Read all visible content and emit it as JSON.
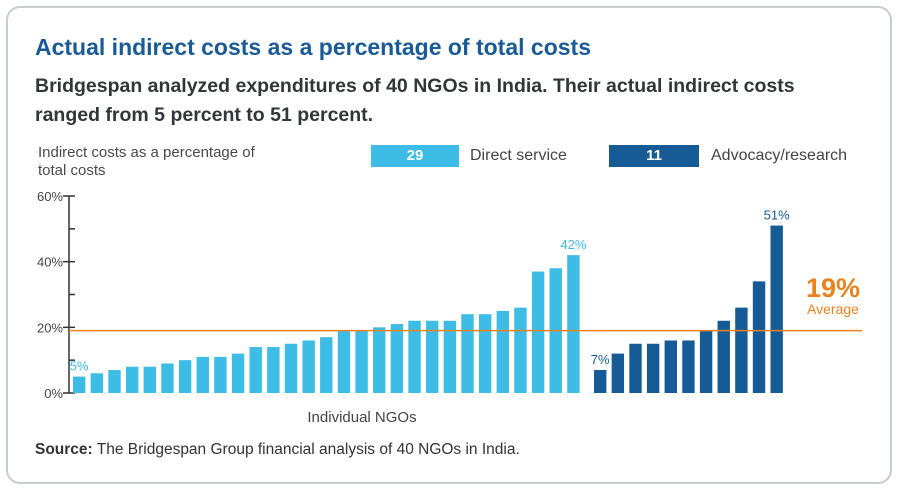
{
  "title": "Actual indirect costs as a percentage of total costs",
  "subtitle": "Bridgespan analyzed expenditures of 40 NGOs in India. Their actual indirect costs ranged from 5 percent to 51 percent.",
  "source_label": "Source:",
  "source_text": " The Bridgespan Group financial analysis of 40 NGOs in India.",
  "legend": [
    {
      "count": "29",
      "label": "Direct service",
      "color": "#3dbde6"
    },
    {
      "count": "11",
      "label": "Advocacy/research",
      "color": "#165a96"
    }
  ],
  "average": {
    "value": 19,
    "label": "19%",
    "caption": "Average",
    "color": "#e8821e"
  },
  "chart_data": {
    "type": "bar",
    "ylabel": "Indirect costs as a percentage of total costs",
    "xlabel": "Individual NGOs",
    "ylim": [
      0,
      60
    ],
    "yticks": [
      "0%",
      "20%",
      "40%",
      "60%"
    ],
    "grid": false,
    "series": [
      {
        "name": "Direct service",
        "color": "#3dbde6",
        "values": [
          5,
          6,
          7,
          8,
          8,
          9,
          10,
          11,
          11,
          12,
          14,
          14,
          15,
          16,
          17,
          19,
          19,
          20,
          21,
          22,
          22,
          22,
          24,
          24,
          25,
          26,
          37,
          38,
          42
        ]
      },
      {
        "name": "Advocacy/research",
        "color": "#165a96",
        "values": [
          7,
          12,
          15,
          15,
          16,
          16,
          19,
          22,
          26,
          34,
          51
        ]
      }
    ],
    "annotations": [
      {
        "series": 0,
        "index": 0,
        "text": "5%"
      },
      {
        "series": 0,
        "index": 28,
        "text": "42%"
      },
      {
        "series": 1,
        "index": 0,
        "text": "7%"
      },
      {
        "series": 1,
        "index": 10,
        "text": "51%"
      }
    ],
    "average_line": 19
  }
}
